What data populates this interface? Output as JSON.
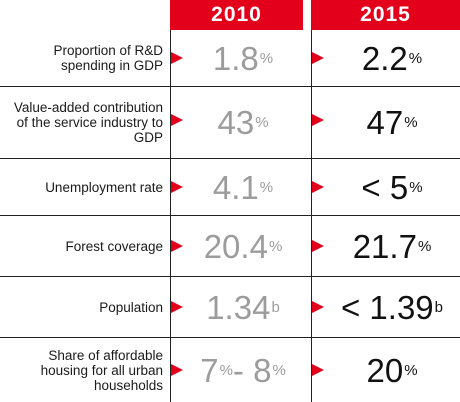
{
  "headers": {
    "col_2010": "2010",
    "col_2015": "2015"
  },
  "rows": [
    {
      "label": "Proportion of R&D spending in GDP",
      "v2010": {
        "num": "1.8",
        "unit": "%"
      },
      "v2015": {
        "num": "2.2",
        "unit": "%"
      }
    },
    {
      "label": "Value-added contribution of the service industry to GDP",
      "v2010": {
        "num": "43",
        "unit": "%"
      },
      "v2015": {
        "num": "47",
        "unit": "%"
      }
    },
    {
      "label": "Unemployment rate",
      "v2010": {
        "num": "4.1",
        "unit": "%"
      },
      "v2015": {
        "num": "< 5",
        "unit": "%"
      }
    },
    {
      "label": "Forest coverage",
      "v2010": {
        "num": "20.4",
        "unit": "%"
      },
      "v2015": {
        "num": "21.7",
        "unit": "%"
      }
    },
    {
      "label": "Population",
      "v2010": {
        "num": "1.34",
        "unit": "b"
      },
      "v2015": {
        "num": "< 1.39",
        "unit": "b"
      }
    },
    {
      "label": "Share of affordable housing for all urban households",
      "v2010": {
        "num": "7",
        "unit": "%",
        "num2": " - 8",
        "unit2": "%"
      },
      "v2015": {
        "num": "20",
        "unit": "%"
      }
    }
  ],
  "colors": {
    "accent": "#e3001b",
    "value_2010": "#9c9c9c",
    "value_2015": "#111111"
  },
  "icons": {
    "row_marker": "red-triangle-arrow-icon"
  }
}
